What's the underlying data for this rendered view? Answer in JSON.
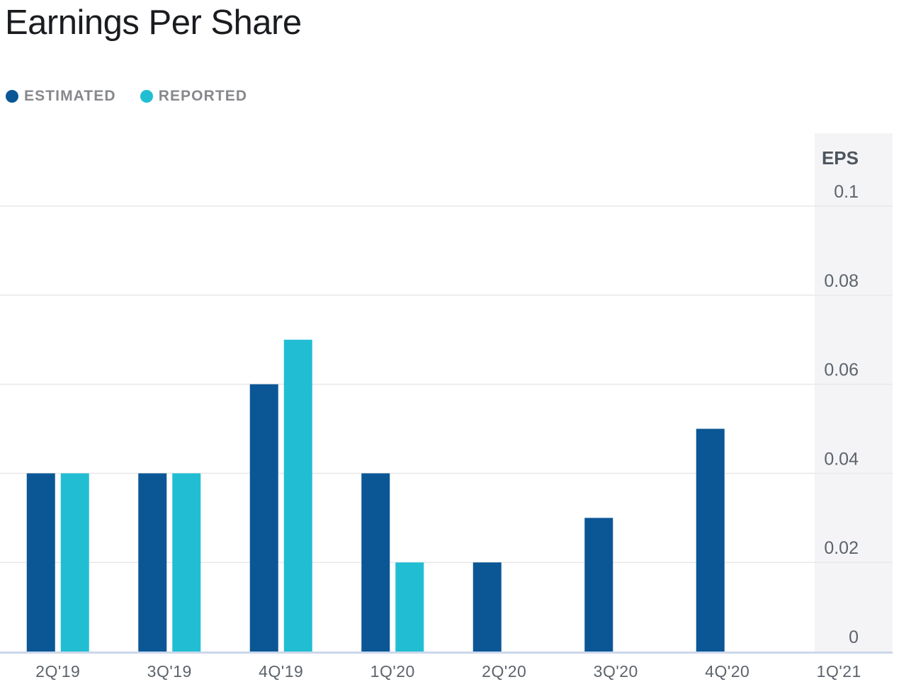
{
  "chart_data": {
    "type": "bar",
    "title": "Earnings Per Share",
    "categories": [
      "2Q'19",
      "3Q'19",
      "4Q'19",
      "1Q'20",
      "2Q'20",
      "3Q'20",
      "4Q'20",
      "1Q'21"
    ],
    "series": [
      {
        "name": "ESTIMATED",
        "color": "#0b5796",
        "values": [
          0.04,
          0.04,
          0.06,
          0.04,
          0.02,
          0.03,
          0.05,
          null
        ]
      },
      {
        "name": "REPORTED",
        "color": "#21bed3",
        "values": [
          0.04,
          0.04,
          0.07,
          0.02,
          null,
          null,
          null,
          null
        ]
      }
    ],
    "xlabel": "",
    "ylabel": "EPS",
    "yticks": [
      0,
      0.02,
      0.04,
      0.06,
      0.08,
      0.1
    ],
    "ylim": [
      0,
      0.1
    ],
    "grid": true,
    "legend_position": "top-left",
    "y_axis_side": "right",
    "future_band_category": "1Q'21",
    "future_band_color": "#f4f4f7"
  },
  "colors": {
    "estimated": "#0b5796",
    "reported": "#21bed3",
    "gridline": "#e8e8e8",
    "baseline": "#ccd7ea",
    "title_text": "#1a1c20",
    "legend_text": "#87888c",
    "axis_text": "#5c636b",
    "axis_title_text": "#4d555e",
    "future_band": "#f4f4f7"
  }
}
